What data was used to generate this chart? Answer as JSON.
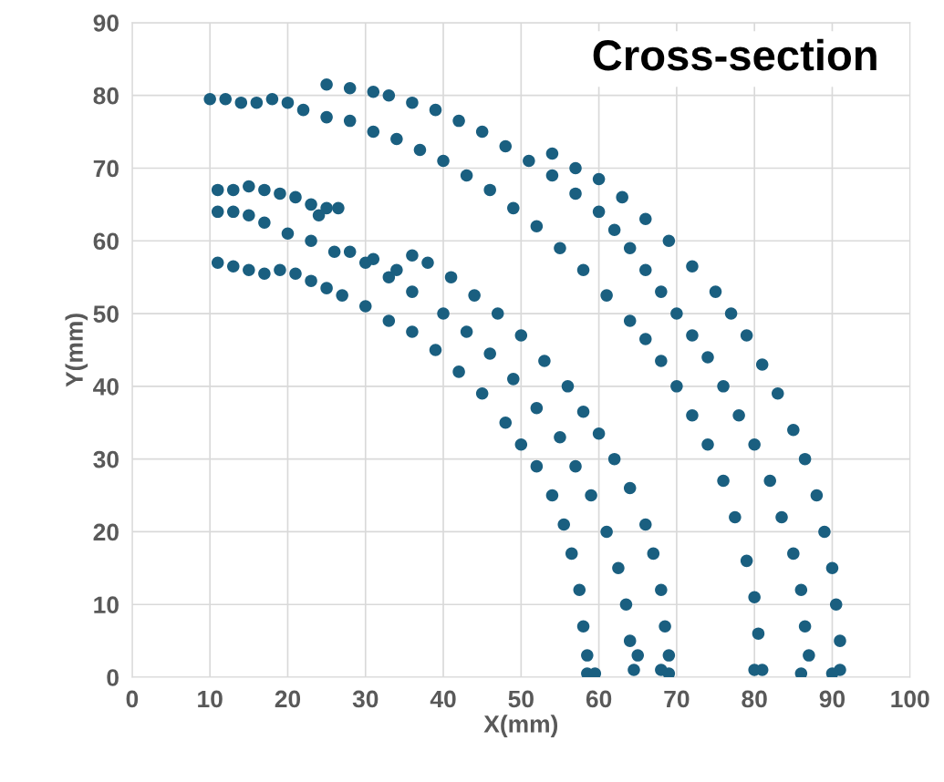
{
  "chart_data": {
    "type": "scatter",
    "title": "Cross-section",
    "xlabel": "X(mm)",
    "ylabel": "Y(mm)",
    "xlim": [
      0,
      100
    ],
    "ylim": [
      0,
      90
    ],
    "xticks": [
      0,
      10,
      20,
      30,
      40,
      50,
      60,
      70,
      80,
      90,
      100
    ],
    "yticks": [
      0,
      10,
      20,
      30,
      40,
      50,
      60,
      70,
      80,
      90
    ],
    "grid": true,
    "marker": "circle",
    "series": [
      {
        "color": "#1a5f80",
        "x": [
          11,
          13,
          15,
          17,
          19,
          21,
          23,
          25,
          27,
          30,
          33,
          36,
          39,
          42,
          45,
          48,
          50,
          52,
          54,
          55.5,
          56.5,
          57.5,
          58,
          58.5,
          58.5,
          59.5,
          11,
          13,
          15,
          17,
          20,
          23,
          26,
          30,
          33,
          36,
          40,
          43,
          46,
          49,
          52,
          55,
          57,
          59,
          61,
          62.5,
          63.5,
          64,
          64.5,
          65,
          11,
          13,
          15,
          17,
          19,
          21,
          23,
          25,
          26.5,
          24,
          28,
          31,
          34,
          36,
          38,
          41,
          44,
          47,
          50,
          53,
          56,
          58,
          60,
          62,
          64,
          66,
          67,
          68,
          68.5,
          69,
          69,
          68,
          10,
          12,
          14,
          16,
          18,
          20,
          22,
          25,
          28,
          31,
          34,
          37,
          40,
          43,
          46,
          49,
          52,
          55,
          58,
          61,
          64,
          66,
          68,
          70,
          72,
          74,
          76,
          77.5,
          79,
          80,
          80.5,
          81,
          80,
          25,
          28,
          31,
          33,
          36,
          39,
          42,
          45,
          48,
          51,
          54,
          57,
          60,
          62,
          64,
          66,
          68,
          70,
          72,
          74,
          76,
          78,
          80,
          82,
          83.5,
          85,
          86,
          86.5,
          87,
          86,
          54,
          57,
          60,
          63,
          66,
          69,
          72,
          75,
          77,
          79,
          81,
          83,
          85,
          86.5,
          88,
          89,
          90,
          90.5,
          91,
          91,
          90
        ],
        "values": [
          57,
          56.5,
          56,
          55.5,
          56,
          55.5,
          54.5,
          53.5,
          52.5,
          51,
          49,
          47.5,
          45,
          42,
          39,
          35,
          32,
          29,
          25,
          21,
          17,
          12,
          7,
          3,
          0.5,
          0.5,
          64,
          64,
          63.5,
          62.5,
          61,
          60,
          58.5,
          57,
          55,
          53,
          50,
          47.5,
          44.5,
          41,
          37,
          33,
          29,
          25,
          20,
          15,
          10,
          5,
          1,
          3,
          67,
          67,
          67.5,
          67,
          66.5,
          66,
          65,
          64.5,
          64.5,
          63.5,
          58.5,
          57.5,
          56,
          58,
          57,
          55,
          52.5,
          50,
          47,
          43.5,
          40,
          36.5,
          33.5,
          30,
          26,
          21,
          17,
          12,
          7,
          3,
          0.5,
          1,
          79.5,
          79.5,
          79,
          79,
          79.5,
          79,
          78,
          77,
          76.5,
          75,
          74,
          72.5,
          71,
          69,
          67,
          64.5,
          62,
          59,
          56,
          52.5,
          49,
          46.5,
          43.5,
          40,
          36,
          32,
          27,
          22,
          16,
          11,
          6,
          1,
          1,
          81.5,
          81,
          80.5,
          80,
          79,
          78,
          76.5,
          75,
          73,
          71,
          69,
          66.5,
          64,
          61.5,
          59,
          56,
          53,
          50,
          47,
          44,
          40,
          36,
          32,
          27,
          22,
          17,
          12,
          7,
          3,
          0.5,
          72,
          70,
          68.5,
          66,
          63,
          60,
          56.5,
          53,
          50,
          47,
          43,
          39,
          34,
          30,
          25,
          20,
          15,
          10,
          5,
          1,
          0.5
        ]
      }
    ]
  }
}
